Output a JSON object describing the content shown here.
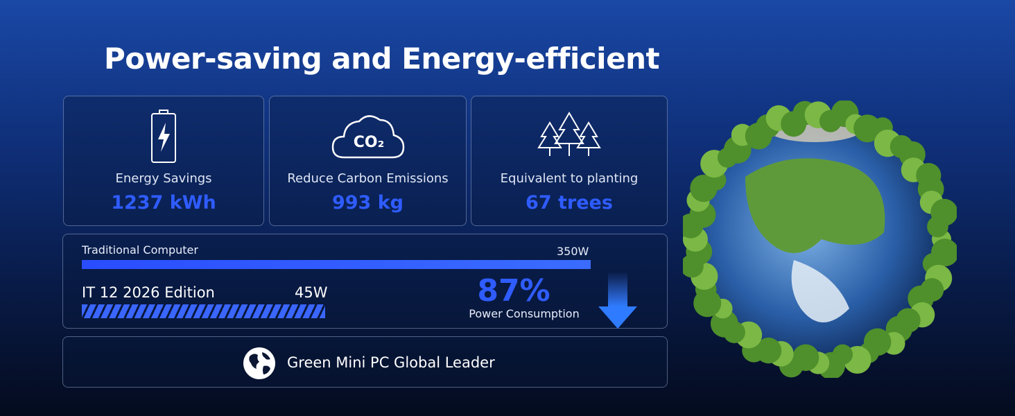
{
  "header": {
    "title": "Power-saving and Energy-efficient"
  },
  "stats": [
    {
      "label": "Energy Savings",
      "value": "1237 kWh"
    },
    {
      "label": "Reduce Carbon Emissions",
      "value": "993 kg",
      "icon_text": "CO₂"
    },
    {
      "label": "Equivalent to planting",
      "value": "67 trees"
    }
  ],
  "comparison": {
    "items": [
      {
        "label": "Traditional Computer",
        "value": "350W"
      },
      {
        "label": "IT 12 2026 Edition",
        "value": "45W"
      }
    ],
    "reduction": "87%",
    "reduction_label": "Power Consumption"
  },
  "footer": {
    "text": "Green Mini PC Global Leader"
  }
}
